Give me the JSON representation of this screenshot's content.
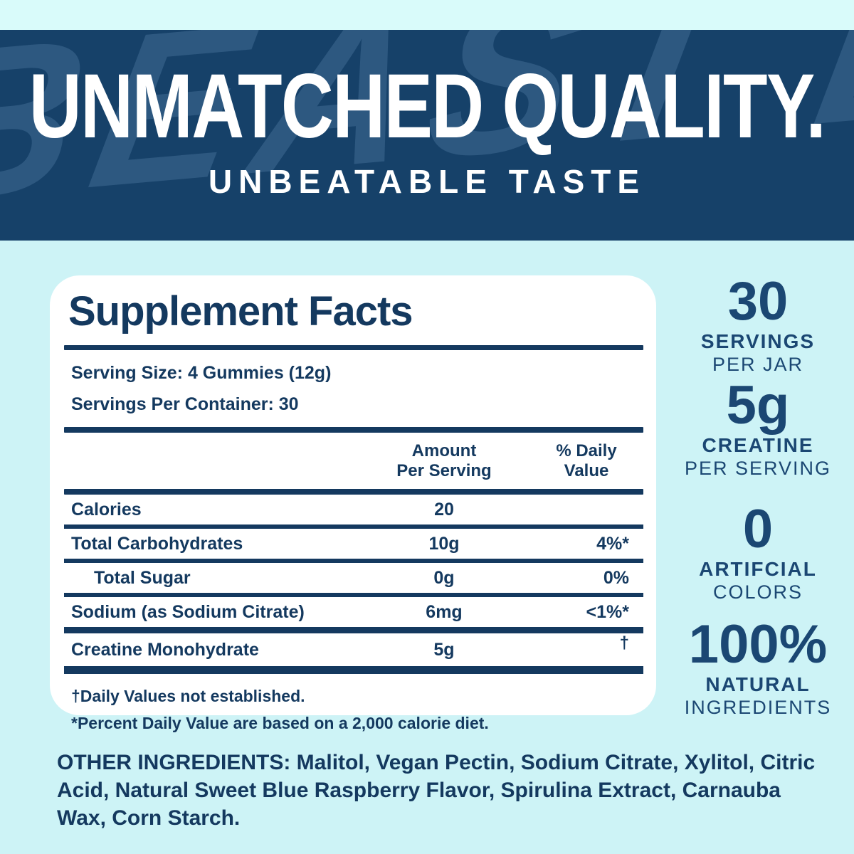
{
  "banner": {
    "headline": "UNMATCHED QUALITY.",
    "subheadline": "UNBEATABLE TASTE",
    "watermark": "BEAST BITE"
  },
  "panel": {
    "title": "Supplement Facts",
    "serving_size": "Serving Size: 4 Gummies (12g)",
    "servings_per_container": "Servings Per Container: 30",
    "header": {
      "amount_line1": "Amount",
      "amount_line2": "Per Serving",
      "dv_line1": "% Daily",
      "dv_line2": "Value"
    },
    "rows": [
      {
        "name": "Calories",
        "amount": "20",
        "dv": "",
        "indent": false,
        "sup": false,
        "rule": 6
      },
      {
        "name": "Total Carbohydrates",
        "amount": "10g",
        "dv": "4%*",
        "indent": false,
        "sup": false,
        "rule": 6
      },
      {
        "name": "Total Sugar",
        "amount": "0g",
        "dv": "0%",
        "indent": true,
        "sup": false,
        "rule": 6
      },
      {
        "name": "Sodium (as Sodium Citrate)",
        "amount": "6mg",
        "dv": "<1%*",
        "indent": false,
        "sup": false,
        "rule": 9
      },
      {
        "name": "Creatine Monohydrate",
        "amount": "5g",
        "dv": "†",
        "indent": false,
        "sup": true,
        "rule": 11
      }
    ],
    "footnote1": "†Daily Values not established.",
    "footnote2": "*Percent Daily Value are based on a 2,000 calorie diet."
  },
  "highlights": [
    {
      "value": "30",
      "label": "SERVINGS",
      "sublabel": "PER JAR"
    },
    {
      "value": "5g",
      "label": "CREATINE",
      "sublabel": "PER SERVING"
    },
    {
      "value": "0",
      "label": "ARTIFCIAL",
      "sublabel": "COLORS"
    },
    {
      "value": "100%",
      "label": "NATURAL",
      "sublabel": "INGREDIENTS"
    }
  ],
  "other_ingredients": "OTHER INGREDIENTS: Malitol, Vegan Pectin, Sodium Citrate, Xylitol, Citric Acid, Natural Sweet Blue Raspberry Flavor, Spirulina Extract, Carnauba Wax, Corn Starch.",
  "colors": {
    "banner_bg": "#164169",
    "page_bg": "#cdf3f6",
    "top_strip_bg": "#d9fbfa",
    "navy_text": "#14395f",
    "highlight_text": "#1b4773",
    "card_bg": "#ffffff"
  }
}
